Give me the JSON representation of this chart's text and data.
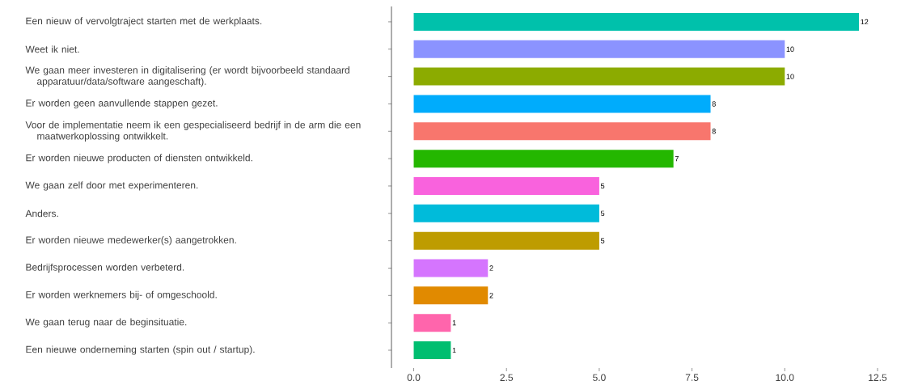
{
  "chart_data": {
    "type": "bar",
    "orientation": "horizontal",
    "categories": [
      "Een nieuw of vervolgtraject starten met de werkplaats.",
      "Weet ik niet.",
      "We gaan meer investeren in digitalisering (er wordt bijvoorbeeld standaard apparatuur/data/software aangeschaft).",
      "Er worden geen aanvullende stappen gezet.",
      "Voor de implementatie neem ik een gespecialiseerd bedrijf in de arm die een maatwerkoplossing ontwikkelt.",
      "Er worden nieuwe producten of diensten ontwikkeld.",
      "We gaan zelf door met experimenteren.",
      "Anders.",
      "Er worden nieuwe medewerker(s) aangetrokken.",
      "Bedrijfsprocessen worden verbeterd.",
      "Er worden werknemers bij- of omgeschoold.",
      "We gaan terug naar de beginsituatie.",
      "Een nieuwe onderneming starten (spin out / startup)."
    ],
    "values": [
      12,
      10,
      10,
      8,
      8,
      7,
      5,
      5,
      5,
      2,
      2,
      1,
      1
    ],
    "colors": [
      "#00c1ab",
      "#8b93ff",
      "#8cab00",
      "#00acfc",
      "#f8766d",
      "#24b700",
      "#f962dd",
      "#00bbda",
      "#be9c00",
      "#d575fe",
      "#e18a00",
      "#ff65ac",
      "#00be70"
    ],
    "xlim": [
      -0.6,
      12.5
    ],
    "xticks": [
      {
        "value": 0,
        "label": "0.0"
      },
      2.5,
      {
        "value": 5,
        "label": "5.0"
      },
      7.5,
      {
        "value": 10,
        "label": "10.0"
      },
      12.5
    ],
    "data_labels": true
  }
}
